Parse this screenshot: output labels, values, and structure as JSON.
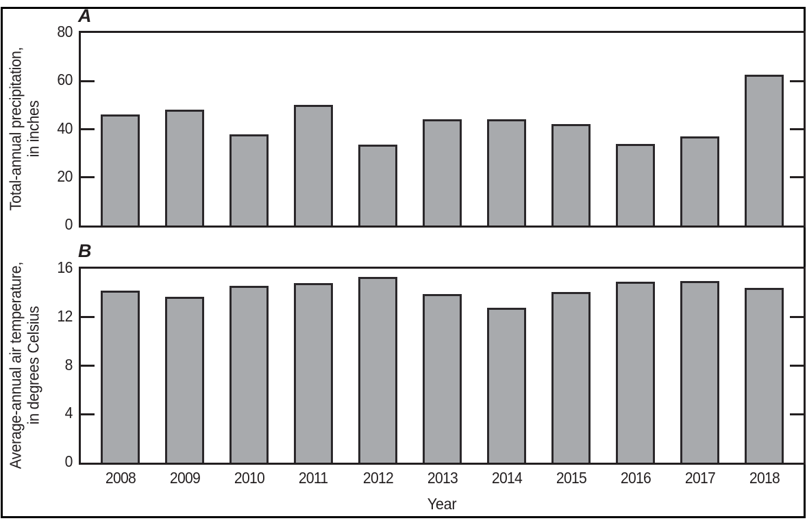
{
  "figure": {
    "panel_a_label": "A",
    "panel_b_label": "B",
    "x_axis_label": "Year"
  },
  "chart_data": [
    {
      "type": "bar",
      "panel": "A",
      "title": "",
      "categories": [
        "2008",
        "2009",
        "2010",
        "2011",
        "2012",
        "2013",
        "2014",
        "2015",
        "2016",
        "2017",
        "2018"
      ],
      "values": [
        46,
        48,
        38,
        50,
        33.5,
        44,
        44,
        42,
        34,
        37,
        62.5
      ],
      "xlabel": "Year",
      "ylabel": "Total-annual precipitation,\nin inches",
      "ylim": [
        0,
        80
      ],
      "yticks": [
        0,
        20,
        40,
        60,
        80
      ],
      "grid": false,
      "legend": false
    },
    {
      "type": "bar",
      "panel": "B",
      "title": "",
      "categories": [
        "2008",
        "2009",
        "2010",
        "2011",
        "2012",
        "2013",
        "2014",
        "2015",
        "2016",
        "2017",
        "2018"
      ],
      "values": [
        14.2,
        13.7,
        14.6,
        14.8,
        15.3,
        13.9,
        12.8,
        14.1,
        14.9,
        15.0,
        14.4
      ],
      "xlabel": "Year",
      "ylabel": "Average-annual air temperature,\nin degrees Celsius",
      "ylim": [
        0,
        16
      ],
      "yticks": [
        0,
        4,
        8,
        12,
        16
      ],
      "grid": false,
      "legend": false
    }
  ],
  "colors": {
    "background": "#ffffff",
    "frame": "#000000",
    "ink": "#231f20",
    "bar_fill": "#a8aaad",
    "bar_border": "#2b282b"
  }
}
